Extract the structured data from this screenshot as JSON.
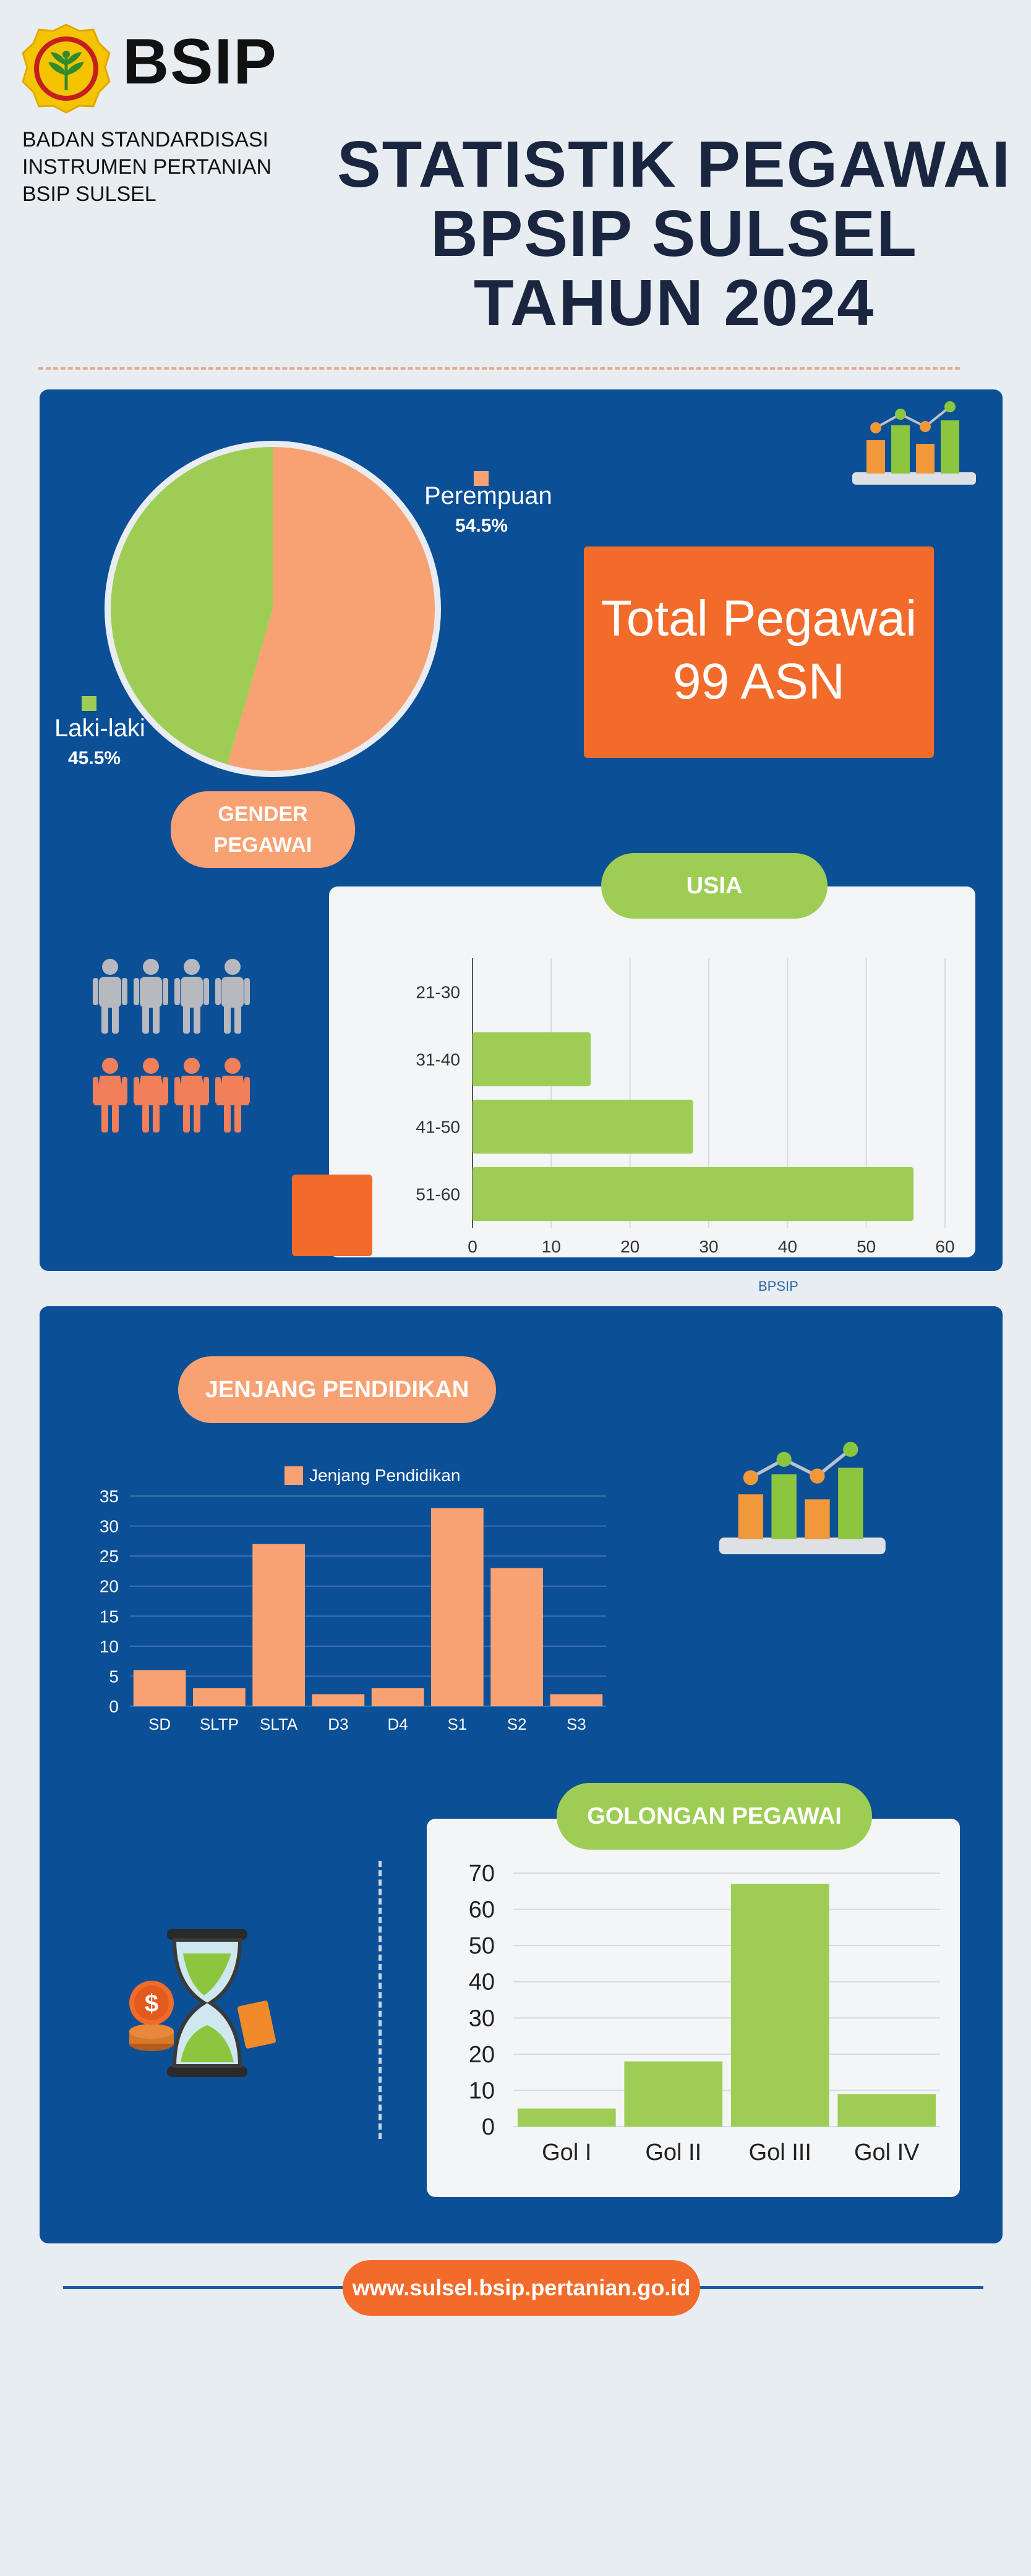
{
  "header": {
    "logo_text": "BSIP",
    "org_lines": [
      "BADAN STANDARDISASI",
      "INSTRUMEN PERTANIAN",
      "BSIP SULSEL"
    ],
    "title_lines": [
      "STATISTIK PEGAWAI",
      "BPSIP SULSEL",
      "TAHUN 2024"
    ]
  },
  "gender": {
    "pill_lines": [
      "GENDER",
      "PEGAWAI"
    ],
    "female_label": "Perempuan",
    "female_pct": "54.5%",
    "male_label": "Laki-laki",
    "male_pct": "45.5%"
  },
  "total": {
    "line1": "Total Pegawai",
    "line2": "99 ASN"
  },
  "usia_title": "USIA",
  "pendidikan_title": "JENJANG PENDIDIKAN",
  "golongan_title": "GOLONGAN PEGAWAI",
  "footer": {
    "url": "www.sulsel.bsip.pertanian.go.id"
  },
  "watermark": "BPSIP",
  "colors": {
    "panel": "#0b4f96",
    "orange": "#f26b2a",
    "peach": "#f8a274",
    "green": "#9ecd55",
    "male_pie": "#9ecd55",
    "female_pie": "#f8a274"
  },
  "icons": [
    "bar-chart-icon",
    "people-icon",
    "hourglass-icon",
    "coin-icon"
  ],
  "chart_data": [
    {
      "id": "gender",
      "type": "pie",
      "categories": [
        "Perempuan",
        "Laki-laki"
      ],
      "values": [
        54.5,
        45.5
      ],
      "unit": "%"
    },
    {
      "id": "usia",
      "type": "bar",
      "orientation": "horizontal",
      "categories": [
        "21-30",
        "31-40",
        "41-50",
        "51-60"
      ],
      "values": [
        0,
        15,
        28,
        56
      ],
      "xlim": [
        0,
        60
      ],
      "xticks": [
        0,
        10,
        20,
        30,
        40,
        50,
        60
      ],
      "grid": true
    },
    {
      "id": "pendidikan",
      "type": "bar",
      "categories": [
        "SD",
        "SLTP",
        "SLTA",
        "D3",
        "D4",
        "S1",
        "S2",
        "S3"
      ],
      "series": [
        {
          "name": "Jenjang Pendidikan",
          "values": [
            6,
            3,
            27,
            2,
            3,
            33,
            23,
            2
          ]
        }
      ],
      "ylim": [
        0,
        35
      ],
      "yticks": [
        0,
        5,
        10,
        15,
        20,
        25,
        30,
        35
      ],
      "legend": "top",
      "grid": true
    },
    {
      "id": "golongan",
      "type": "bar",
      "categories": [
        "Gol I",
        "Gol II",
        "Gol III",
        "Gol IV"
      ],
      "values": [
        5,
        18,
        67,
        9
      ],
      "ylim": [
        0,
        70
      ],
      "yticks": [
        0,
        10,
        20,
        30,
        40,
        50,
        60,
        70
      ],
      "grid": true
    }
  ]
}
